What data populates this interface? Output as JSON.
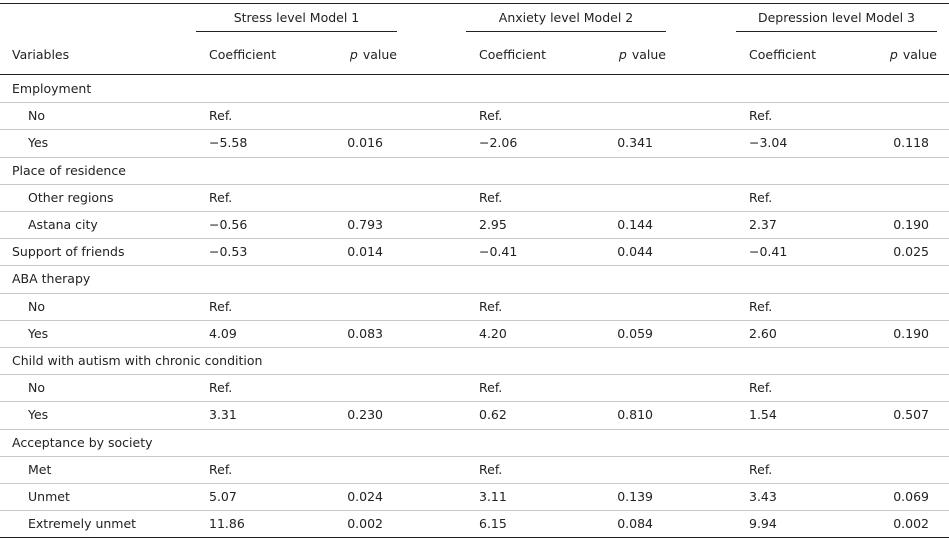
{
  "table": {
    "groups": [
      "Stress level Model 1",
      "Anxiety level Model 2",
      "Depression level Model 3"
    ],
    "header": {
      "variables": "Variables",
      "coefficient": "Coefficient",
      "p_italic": "p",
      "p_rest": "value"
    },
    "rows": [
      {
        "label": "Employment"
      },
      {
        "label": "No",
        "indent": true,
        "cells": [
          "Ref.",
          null,
          "Ref.",
          null,
          "Ref.",
          null
        ]
      },
      {
        "label": "Yes",
        "indent": true,
        "cells": [
          "−5.58",
          "0.016",
          "−2.06",
          "0.341",
          "−3.04",
          "0.118"
        ]
      },
      {
        "label": "Place of residence"
      },
      {
        "label": "Other regions",
        "indent": true,
        "cells": [
          "Ref.",
          null,
          "Ref.",
          null,
          "Ref.",
          null
        ]
      },
      {
        "label": "Astana city",
        "indent": true,
        "cells": [
          "−0.56",
          "0.793",
          "2.95",
          "0.144",
          "2.37",
          "0.190"
        ]
      },
      {
        "label": "Support of friends",
        "cells": [
          "−0.53",
          "0.014",
          "−0.41",
          "0.044",
          "−0.41",
          "0.025"
        ]
      },
      {
        "label": "ABA therapy"
      },
      {
        "label": "No",
        "indent": true,
        "cells": [
          "Ref.",
          null,
          "Ref.",
          null,
          "Ref.",
          null
        ]
      },
      {
        "label": "Yes",
        "indent": true,
        "cells": [
          "4.09",
          "0.083",
          "4.20",
          "0.059",
          "2.60",
          "0.190"
        ]
      },
      {
        "label": "Child with autism with chronic condition"
      },
      {
        "label": "No",
        "indent": true,
        "cells": [
          "Ref.",
          null,
          "Ref.",
          null,
          "Ref.",
          null
        ]
      },
      {
        "label": "Yes",
        "indent": true,
        "cells": [
          "3.31",
          "0.230",
          "0.62",
          "0.810",
          "1.54",
          "0.507"
        ]
      },
      {
        "label": "Acceptance by society"
      },
      {
        "label": "Met",
        "indent": true,
        "cells": [
          "Ref.",
          null,
          "Ref.",
          null,
          "Ref.",
          null
        ]
      },
      {
        "label": "Unmet",
        "indent": true,
        "cells": [
          "5.07",
          "0.024",
          "3.11",
          "0.139",
          "3.43",
          "0.069"
        ]
      },
      {
        "label": "Extremely unmet",
        "indent": true,
        "cells": [
          "11.86",
          "0.002",
          "6.15",
          "0.084",
          "9.94",
          "0.002"
        ]
      }
    ]
  }
}
